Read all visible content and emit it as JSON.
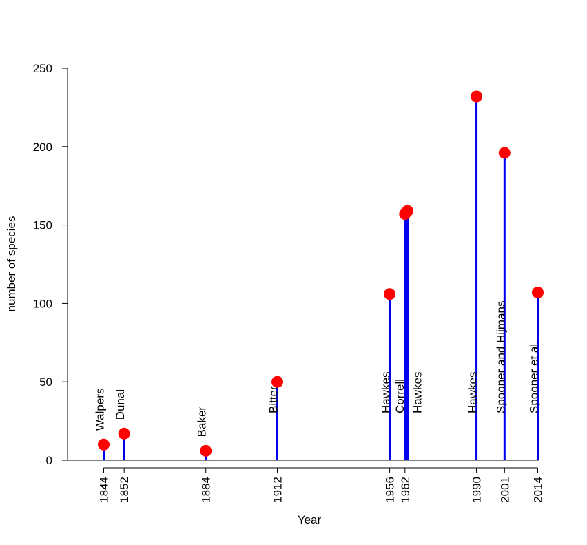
{
  "chart_data": {
    "type": "lollipop",
    "xlabel": "Year",
    "ylabel": "number of species",
    "ylim": [
      0,
      250
    ],
    "yticks": [
      0,
      50,
      100,
      150,
      200,
      250
    ],
    "xticks": [
      1844,
      1852,
      1884,
      1912,
      1956,
      1962,
      1990,
      2001,
      2014
    ],
    "stem_color": "#0000ee",
    "point_color": "#ff0000",
    "points": [
      {
        "year": 1844,
        "value": 10,
        "label": "Walpers"
      },
      {
        "year": 1852,
        "value": 17,
        "label": "Dunal"
      },
      {
        "year": 1884,
        "value": 6,
        "label": "Baker"
      },
      {
        "year": 1912,
        "value": 50,
        "label": "Bitter"
      },
      {
        "year": 1956,
        "value": 106,
        "label": "Hawkes"
      },
      {
        "year": 1962,
        "value": 157,
        "label": "Correll"
      },
      {
        "year": 1963,
        "value": 159,
        "label": "Hawkes"
      },
      {
        "year": 1990,
        "value": 232,
        "label": "Hawkes"
      },
      {
        "year": 2001,
        "value": 196,
        "label": "Spooner and Hijmans"
      },
      {
        "year": 2014,
        "value": 107,
        "label": "Spooner et al."
      }
    ]
  }
}
